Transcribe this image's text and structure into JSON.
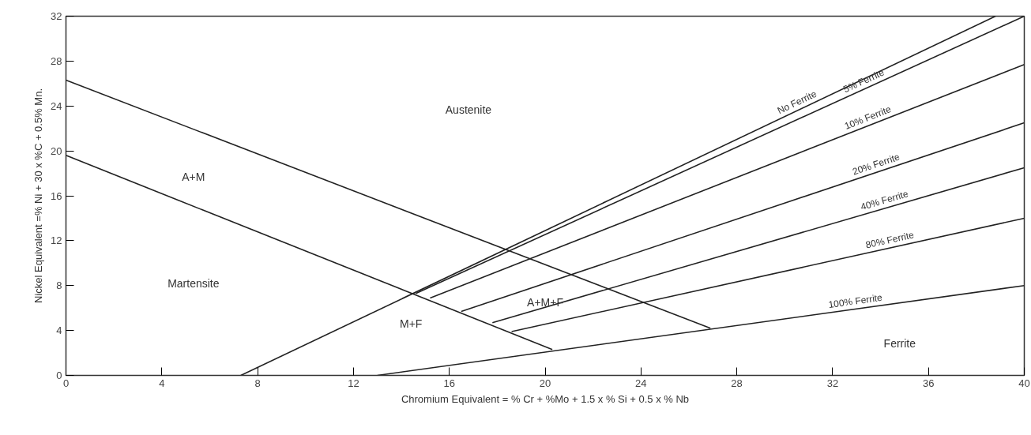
{
  "chart_data": {
    "type": "line",
    "xlabel": "Chromium Equivalent = % Cr + %Mo + 1.5 x % Si + 0.5 x % Nb",
    "ylabel": "Nickel Equivalent =% Ni + 30 x %C + 0.5% Mn.",
    "xlim": [
      0,
      40
    ],
    "ylim": [
      0,
      32
    ],
    "xticks": [
      0,
      4,
      8,
      12,
      16,
      20,
      24,
      28,
      32,
      36,
      40
    ],
    "yticks": [
      0,
      4,
      8,
      12,
      16,
      20,
      24,
      28,
      32
    ],
    "grid": false,
    "marker": "none",
    "line_style": "solid",
    "series": [
      {
        "color": "#222222",
        "x": [
          0,
          26.9
        ],
        "values": [
          26.3,
          4.2
        ]
      },
      {
        "color": "#222222",
        "x": [
          0,
          20.3
        ],
        "values": [
          19.6,
          2.3
        ]
      },
      {
        "name": "No Ferrite",
        "color": "#222222",
        "x": [
          7.3,
          38.8
        ],
        "values": [
          0,
          32
        ]
      },
      {
        "name": "5% Ferrite",
        "color": "#222222",
        "x": [
          14.6,
          40
        ],
        "values": [
          7.3,
          32
        ]
      },
      {
        "name": "10% Ferrite",
        "color": "#222222",
        "x": [
          15.2,
          40
        ],
        "values": [
          6.9,
          27.7
        ]
      },
      {
        "name": "20% Ferrite",
        "color": "#222222",
        "x": [
          16.5,
          40
        ],
        "values": [
          5.7,
          22.5
        ]
      },
      {
        "name": "40% Ferrite",
        "color": "#222222",
        "x": [
          17.8,
          40
        ],
        "values": [
          4.7,
          18.5
        ]
      },
      {
        "name": "80% Ferrite",
        "color": "#222222",
        "x": [
          18.6,
          40
        ],
        "values": [
          3.9,
          14.0
        ]
      },
      {
        "name": "100% Ferrite",
        "color": "#222222",
        "x": [
          13.0,
          40
        ],
        "values": [
          0,
          8.0
        ]
      }
    ],
    "annotations": [
      "Austenite",
      "A+M",
      "Martensite",
      "M+F",
      "A+M+F",
      "Ferrite"
    ]
  }
}
